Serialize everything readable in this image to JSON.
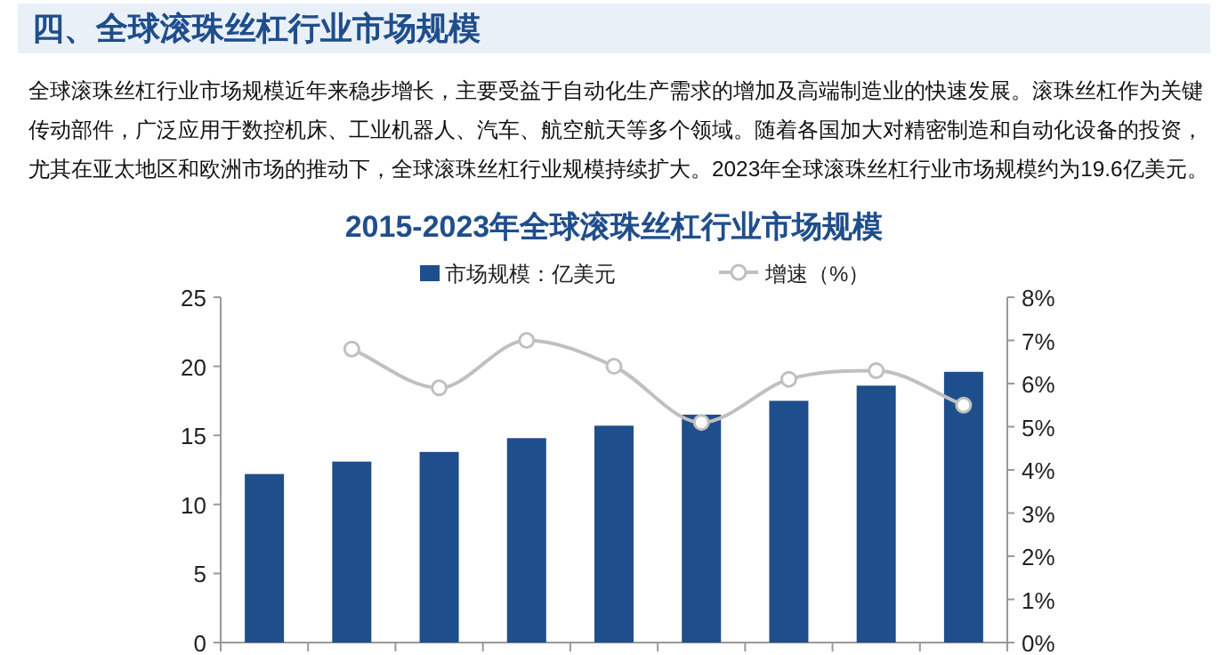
{
  "chart_data": {
    "type": "bar",
    "title": "2015-2023年全球滚珠丝杠行业市场规模",
    "annotations": [
      "四、全球滚珠丝杠行业市场规模",
      "全球滚珠丝杠行业市场规模近年来稳步增长，主要受益于自动化生产需求的增加及高端制造业的快速发展。滚珠丝杠作为关键传动部件，广泛应用于数控机床、工业机器人、汽车、航空航天等多个领域。随着各国加大对精密制造和自动化设备的投资，尤其在亚太地区和欧洲市场的推动下，全球滚珠丝杠行业规模持续扩大。2023年全球滚珠丝杠行业市场规模约为19.6亿美元。"
    ],
    "categories": [
      null,
      null,
      null,
      null,
      null,
      null,
      null,
      null,
      null
    ],
    "series": [
      {
        "name": "市场规模：亿美元",
        "color": "#1f4e8c",
        "values": [
          12.2,
          13.1,
          13.8,
          14.8,
          15.7,
          16.5,
          17.5,
          18.6,
          19.6
        ]
      },
      {
        "name": "增速（%）",
        "type": "line",
        "axis": "y2",
        "color": "#c0c0c0",
        "marker": "circle",
        "values": [
          null,
          6.8,
          5.9,
          7.0,
          6.4,
          5.1,
          6.1,
          6.3,
          5.5
        ]
      }
    ],
    "ylim": [
      0,
      25
    ],
    "yticks": [
      0,
      5,
      10,
      15,
      20,
      25
    ],
    "y2lim": [
      0,
      8
    ],
    "y2ticks": [
      {
        "value": 0,
        "label": "0%"
      },
      {
        "value": 1,
        "label": "1%"
      },
      {
        "value": 2,
        "label": "2%"
      },
      {
        "value": 3,
        "label": "3%"
      },
      {
        "value": 4,
        "label": "4%"
      },
      {
        "value": 5,
        "label": "5%"
      },
      {
        "value": 6,
        "label": "6%"
      },
      {
        "value": 7,
        "label": "7%"
      },
      {
        "value": 8,
        "label": "8%"
      }
    ],
    "grid": false,
    "legend": "top"
  }
}
